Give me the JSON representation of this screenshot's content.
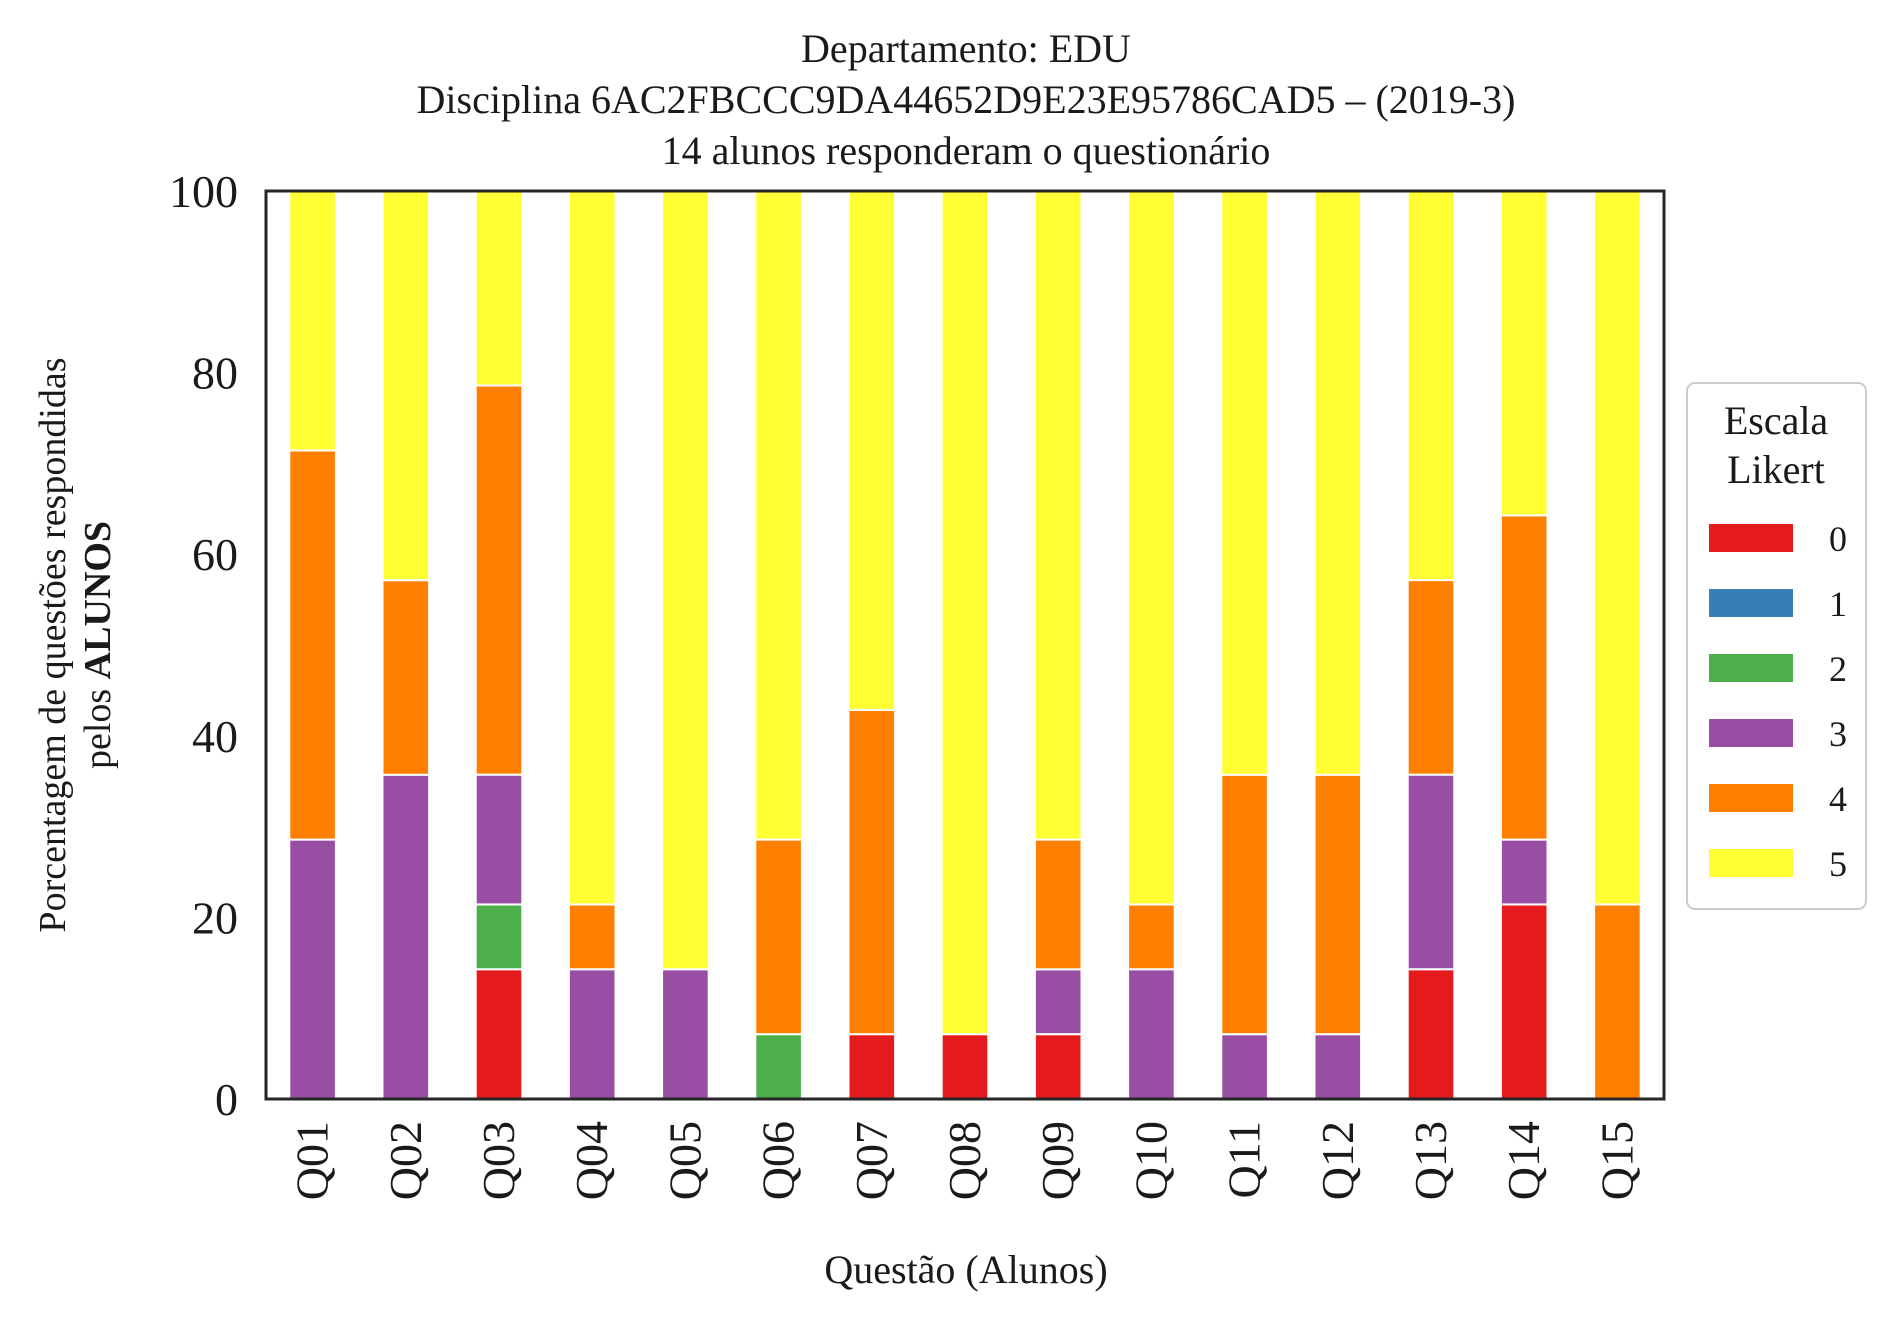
{
  "chart_data": {
    "type": "bar",
    "stacked": true,
    "title_lines": [
      "Departamento: EDU",
      "Disciplina 6AC2FBCCC9DA44652D9E23E95786CAD5 – (2019-3)",
      "14 alunos responderam o questionário"
    ],
    "xlabel": "Questão (Alunos)",
    "ylabel_line1": "Porcentagem de questões respondidas",
    "ylabel_line2_prefix": "pelos ",
    "ylabel_line2_bold": "ALUNOS",
    "ylim": [
      0,
      100
    ],
    "yticks": [
      "0",
      "20",
      "40",
      "60",
      "80",
      "100"
    ],
    "categories": [
      "Q01",
      "Q02",
      "Q03",
      "Q04",
      "Q05",
      "Q06",
      "Q07",
      "Q08",
      "Q09",
      "Q10",
      "Q11",
      "Q12",
      "Q13",
      "Q14",
      "Q15"
    ],
    "grid": false,
    "legend": {
      "title_lines": [
        "Escala",
        "Likert"
      ],
      "placement": "right"
    },
    "series": [
      {
        "name": "0",
        "color": "#e41a1c",
        "values": [
          0,
          0,
          14.29,
          0,
          0,
          0,
          7.14,
          7.14,
          7.14,
          0,
          0,
          0,
          14.29,
          21.43,
          0
        ]
      },
      {
        "name": "1",
        "color": "#377eb8",
        "values": [
          0,
          0,
          0,
          0,
          0,
          0,
          0,
          0,
          0,
          0,
          0,
          0,
          0,
          0,
          0
        ]
      },
      {
        "name": "2",
        "color": "#4daf4a",
        "values": [
          0,
          0,
          7.14,
          0,
          0,
          7.14,
          0,
          0,
          0,
          0,
          0,
          0,
          0,
          0,
          0
        ]
      },
      {
        "name": "3",
        "color": "#984ea3",
        "values": [
          28.57,
          35.71,
          14.29,
          14.29,
          14.29,
          0,
          0,
          0,
          7.14,
          14.29,
          7.14,
          7.14,
          21.43,
          7.14,
          0
        ]
      },
      {
        "name": "4",
        "color": "#ff7f00",
        "values": [
          42.86,
          21.43,
          42.86,
          7.14,
          0,
          21.43,
          35.71,
          0,
          14.29,
          7.14,
          28.57,
          28.57,
          21.43,
          35.71,
          21.43
        ]
      },
      {
        "name": "5",
        "color": "#ffff33",
        "values": [
          28.57,
          42.86,
          21.43,
          78.57,
          85.71,
          71.43,
          57.14,
          92.86,
          71.43,
          78.57,
          64.29,
          64.29,
          42.86,
          35.71,
          78.57
        ]
      }
    ]
  }
}
